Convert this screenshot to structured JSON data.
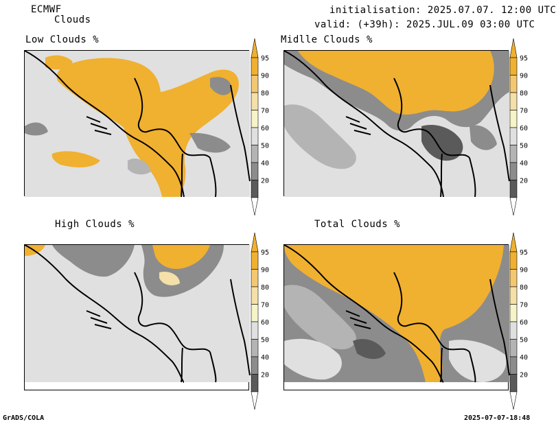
{
  "header": {
    "model": "ECMWF",
    "product": "Clouds",
    "initialisation": "initialisation: 2025.07.07. 12:00 UTC",
    "valid": "valid: (+39h): 2025.JUL.09 03:00 UTC"
  },
  "panels": [
    {
      "title": "Low Clouds %"
    },
    {
      "title": "Midlle Clouds %"
    },
    {
      "title": "High Clouds %"
    },
    {
      "title": "Total Clouds %"
    }
  ],
  "colorbar": {
    "levels": [
      "95",
      "90",
      "80",
      "70",
      "60",
      "50",
      "40",
      "20"
    ],
    "colors": {
      "c95": "#f0b030",
      "c90": "#f3c870",
      "c80": "#f4e0a8",
      "c70": "#f6f4c8",
      "c60": "#e0e0e0",
      "c50": "#b4b4b4",
      "c40": "#8c8c8c",
      "c20": "#5a5a5a",
      "below": "#ffffff"
    }
  },
  "footer": {
    "left": "GrADS/COLA",
    "right": "2025-07-07-18:48"
  }
}
